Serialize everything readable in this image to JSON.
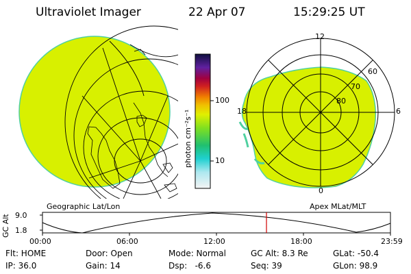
{
  "header": {
    "instrument": "Ultraviolet Imager",
    "date": "22 Apr 07",
    "time": "15:29:25 UT"
  },
  "left_image": {
    "caption": "Geographic Lat/Lon"
  },
  "right_image": {
    "caption": "Apex MLat/MLT",
    "mlt_labels": {
      "top": "12",
      "left": "18",
      "right": "6",
      "bottom": "0"
    },
    "lat_labels": [
      "60",
      "70",
      "80"
    ]
  },
  "colorbar": {
    "unit_label": "photon cm⁻²s⁻¹",
    "tick_labels": [
      "100",
      "10"
    ]
  },
  "orbit_plot": {
    "ylabel": "GC Alt",
    "y_ticks": [
      "9.0",
      "1.8"
    ],
    "x_ticks": [
      "00:00",
      "06:00",
      "12:00",
      "18:00",
      "23:59"
    ],
    "current_time_marker": "15:29:25"
  },
  "status": {
    "flt": "Flt: HOME",
    "ip": "IP: 36.0",
    "door": "Door: Open",
    "gain": "Gain: 14",
    "mode": "Mode: Normal",
    "dsp": "Dsp:   -6.6",
    "gc_alt": "GC Alt: 8.3 Re",
    "seq": "Seq: 39",
    "glat": "GLat: -50.4",
    "glon": "GLon: 98.9"
  },
  "colors": {
    "aurora_fill": "#d8f000",
    "edge": "#4fd0a0",
    "marker": "#d00000"
  }
}
